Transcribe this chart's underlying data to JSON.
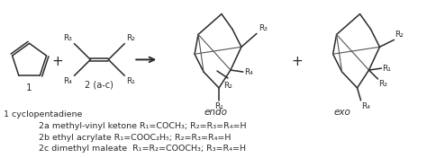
{
  "bg_color": "#ffffff",
  "line_color": "#2a2a2a",
  "text_color": "#2a2a2a",
  "line1_label": "1 cyclopentadiene",
  "line2": "2a methyl-vinyl ketone R₁=COCH₃; R₂=R₃=R₄=H",
  "line3": "2b ethyl acrylate R₁=COOC₂H₅; R₂=R₃=R₄=H",
  "line4": "2c dimethyl maleate  R₁=R₂=COOCH₃; R₃=R₄=H",
  "endo_label": "endo",
  "exo_label": "exo",
  "label_1": "1",
  "label_2ac": "2 (a-c)",
  "fs_main": 7.0,
  "fs_label": 7.5,
  "fs_r": 6.5
}
